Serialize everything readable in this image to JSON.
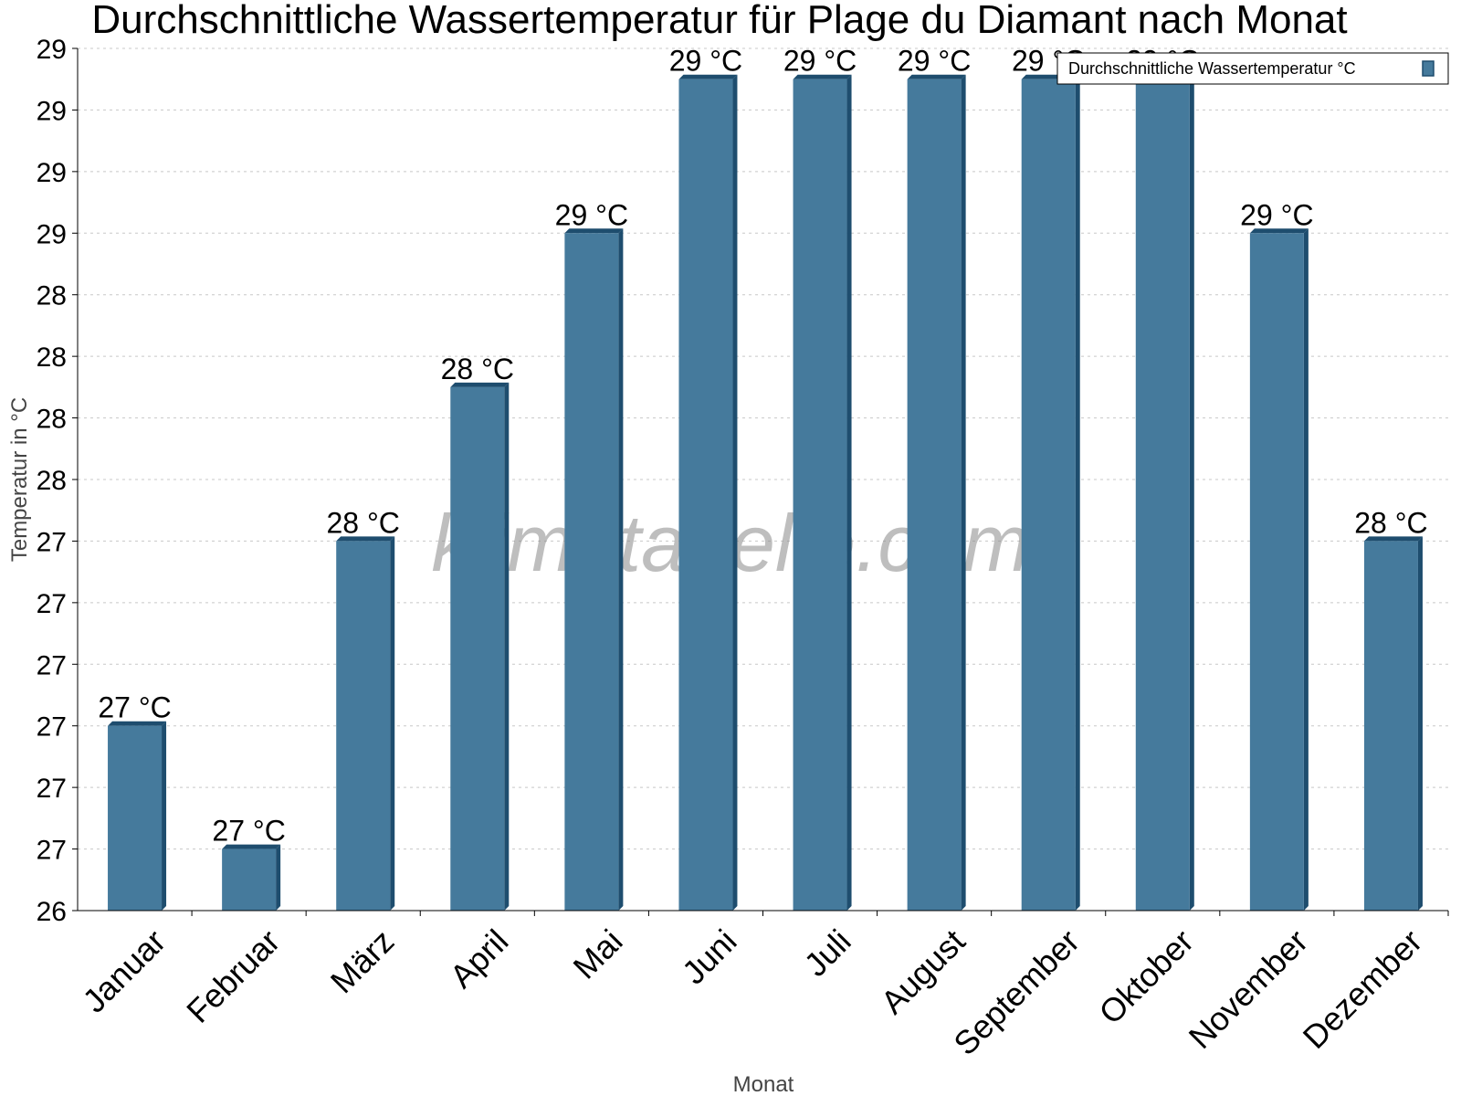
{
  "chart_data": {
    "type": "bar",
    "title": "Durchschnittliche Wassertemperatur für Plage du Diamant nach Monat",
    "xlabel": "Monat",
    "ylabel": "Temperatur in °C",
    "categories": [
      "Januar",
      "Februar",
      "März",
      "April",
      "Mai",
      "Juni",
      "Juli",
      "August",
      "September",
      "Oktober",
      "November",
      "Dezember"
    ],
    "series": [
      {
        "name": "Durchschnittliche Wassertemperatur °C",
        "values": [
          27.0,
          26.6,
          27.6,
          28.1,
          28.6,
          29.1,
          29.1,
          29.1,
          29.1,
          29.1,
          28.6,
          27.6
        ],
        "labels": [
          "27 °C",
          "27 °C",
          "28 °C",
          "28 °C",
          "29 °C",
          "29 °C",
          "29 °C",
          "29 °C",
          "29 °C",
          "29 °C",
          "29 °C",
          "28 °C"
        ]
      }
    ],
    "ylim": [
      26.4,
      29.2
    ],
    "yticks": [
      26.4,
      26.6,
      26.8,
      27.0,
      27.2,
      27.4,
      27.6,
      27.8,
      28.0,
      28.2,
      28.4,
      28.6,
      28.8,
      29.0,
      29.2
    ],
    "ytick_labels": [
      "26",
      "27",
      "27",
      "27",
      "27",
      "27",
      "27",
      "28",
      "28",
      "28",
      "28",
      "29",
      "29",
      "29",
      "29"
    ],
    "grid": true,
    "legend_position": "top-right",
    "bar_color": "#457a9c",
    "bar_edge_color": "#1e4d6e"
  },
  "watermark": "klimatabelle.com"
}
